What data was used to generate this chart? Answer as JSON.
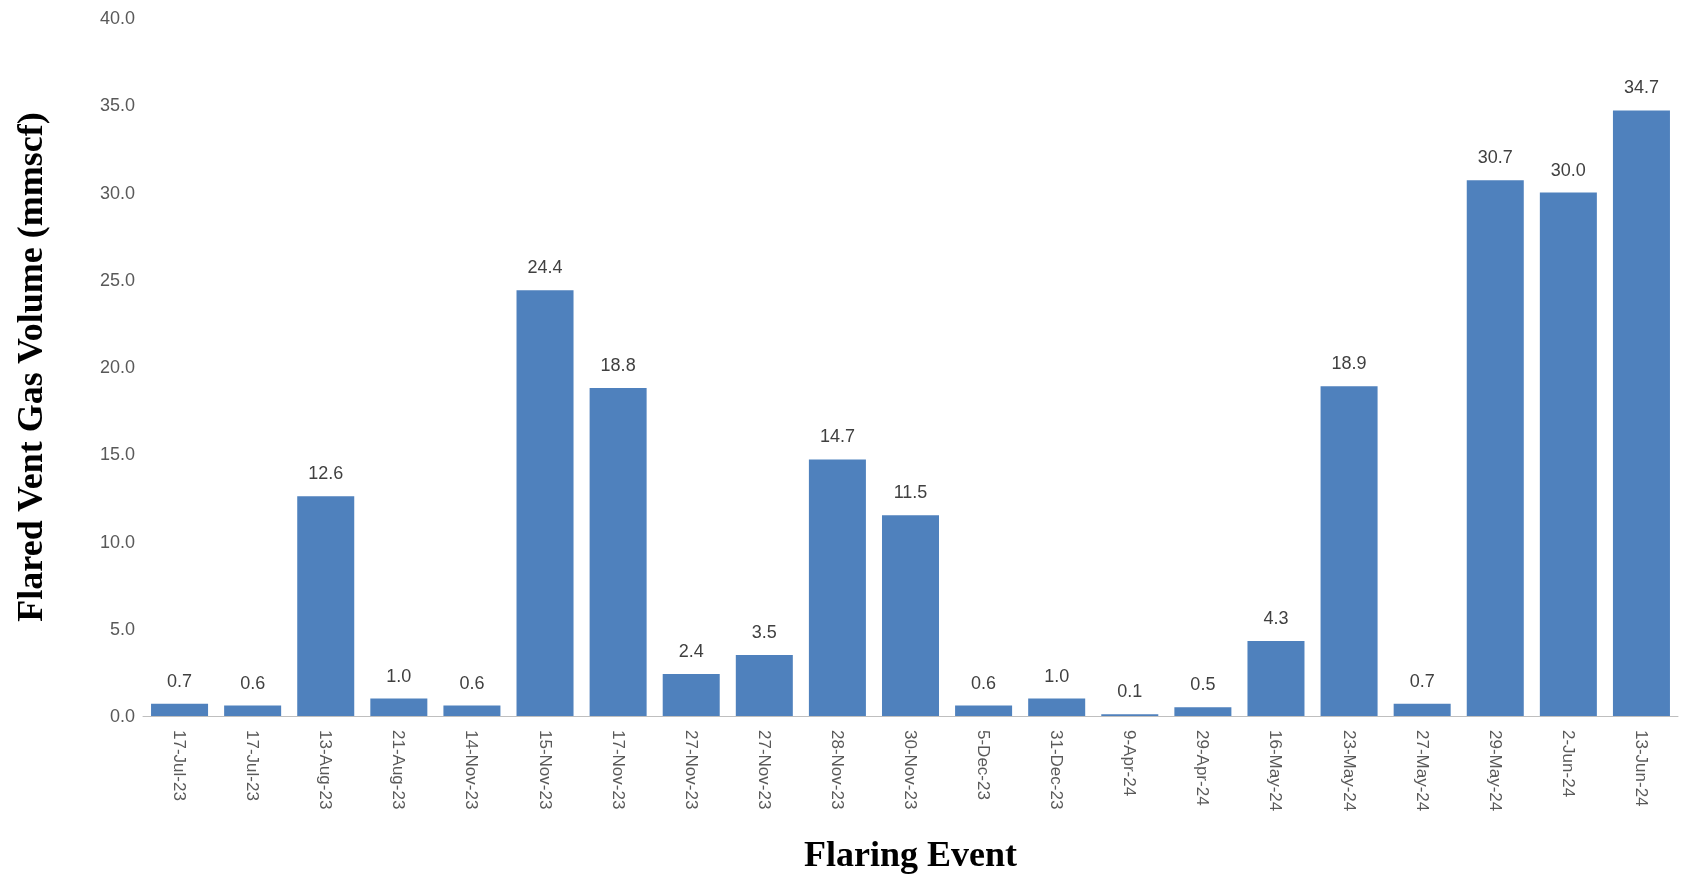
{
  "chart_data": {
    "type": "bar",
    "xlabel": "Flaring Event",
    "ylabel": "Flared Vent Gas Volume (mmscf)",
    "categories": [
      "17-Jul-23",
      "17-Jul-23",
      "13-Aug-23",
      "21-Aug-23",
      "14-Nov-23",
      "15-Nov-23",
      "17-Nov-23",
      "27-Nov-23",
      "27-Nov-23",
      "28-Nov-23",
      "30-Nov-23",
      "5-Dec-23",
      "31-Dec-23",
      "9-Apr-24",
      "29-Apr-24",
      "16-May-24",
      "23-May-24",
      "27-May-24",
      "29-May-24",
      "2-Jun-24",
      "13-Jun-24"
    ],
    "values": [
      0.7,
      0.6,
      12.6,
      1.0,
      0.6,
      24.4,
      18.8,
      2.4,
      3.5,
      14.7,
      11.5,
      0.6,
      1.0,
      0.1,
      0.5,
      4.3,
      18.9,
      0.7,
      30.7,
      30.0,
      34.7
    ],
    "value_labels": [
      "0.7",
      "0.6",
      "12.6",
      "1.0",
      "0.6",
      "24.4",
      "18.8",
      "2.4",
      "3.5",
      "14.7",
      "11.5",
      "0.6",
      "1.0",
      "0.1",
      "0.5",
      "4.3",
      "18.9",
      "0.7",
      "30.7",
      "30.0",
      "34.7"
    ],
    "color": "#4f81bd",
    "ylim": [
      0,
      40
    ],
    "yticks": [
      {
        "value": 0,
        "label": "0.0"
      },
      {
        "value": 5,
        "label": "5.0"
      },
      {
        "value": 10,
        "label": "10.0"
      },
      {
        "value": 15,
        "label": "15.0"
      },
      {
        "value": 20,
        "label": "20.0"
      },
      {
        "value": 25,
        "label": "25.0"
      },
      {
        "value": 30,
        "label": "30.0"
      },
      {
        "value": 35,
        "label": "35.0"
      },
      {
        "value": 40,
        "label": "40.0"
      }
    ],
    "grid": false
  }
}
